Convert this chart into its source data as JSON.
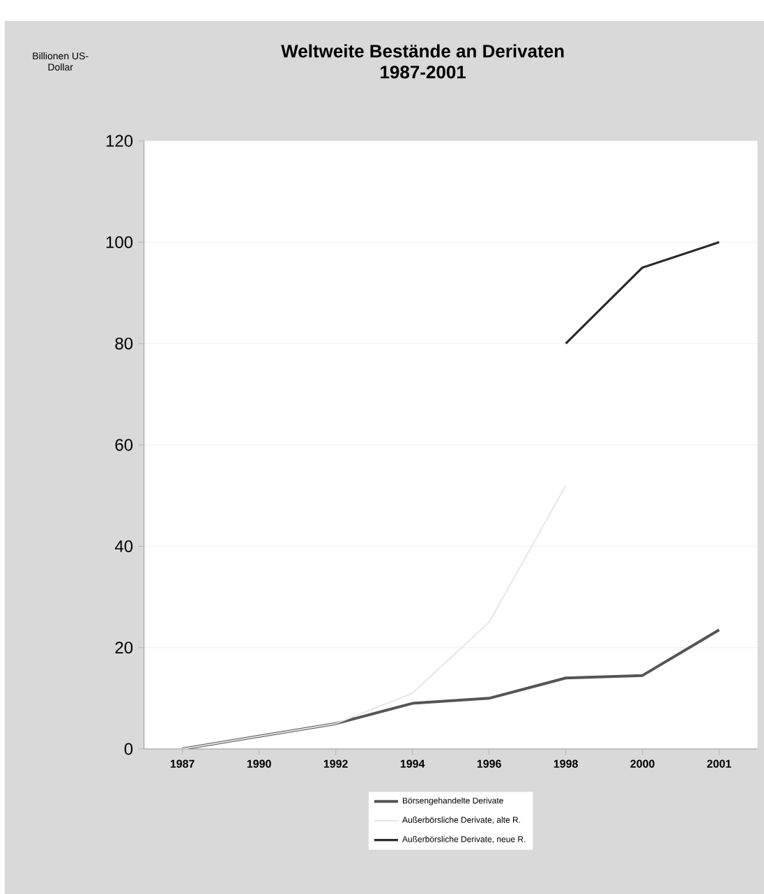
{
  "chart_data": {
    "type": "line",
    "title": "Weltweite Bestände an Derivaten\n1987-2001",
    "annotations": [
      "Billionen US-\nDollar"
    ],
    "categories": [
      "1987",
      "1990",
      "1992",
      "1994",
      "1996",
      "1998",
      "2000",
      "2001"
    ],
    "series": [
      {
        "name": "Börsengehandelte Derivate",
        "color": "#555555",
        "values": [
          0,
          2.5,
          5,
          9,
          10,
          14,
          14.5,
          23.5
        ]
      },
      {
        "name": "Außerbörsliche Derivate, alte R.",
        "color": "#e6e6e6",
        "values": [
          0,
          2.5,
          5,
          11,
          25,
          52,
          null,
          null
        ]
      },
      {
        "name": "Außerbörsliche Derivate, neue R.",
        "color": "#2a2a2a",
        "values": [
          null,
          null,
          null,
          null,
          null,
          80,
          95,
          100
        ]
      }
    ],
    "ylim": [
      0,
      120
    ],
    "yticks": [
      0,
      20,
      40,
      60,
      80,
      100,
      120
    ],
    "grid": "y",
    "legend": "bottom"
  }
}
